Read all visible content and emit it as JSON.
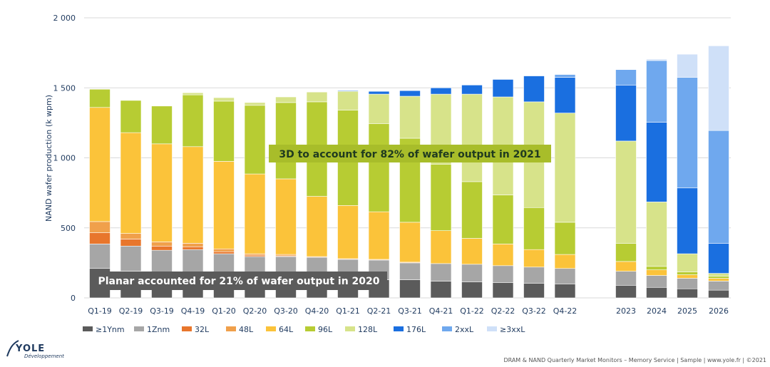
{
  "chart_data": {
    "type": "stacked-bar",
    "title": "",
    "ylabel": "NAND wafer production (k wpm)",
    "ylim": [
      0,
      2000
    ],
    "yticks": [
      0,
      500,
      1000,
      1500,
      2000
    ],
    "ytick_labels": [
      "0",
      "500",
      "1 000",
      "1 500",
      "2 000"
    ],
    "categories": [
      "Q1-19",
      "Q2-19",
      "Q3-19",
      "Q4-19",
      "Q1-20",
      "Q2-20",
      "Q3-20",
      "Q4-20",
      "Q1-21",
      "Q2-21",
      "Q3-21",
      "Q4-21",
      "Q1-22",
      "Q2-22",
      "Q3-22",
      "Q4-22",
      "2023",
      "2024",
      "2025",
      "2026"
    ],
    "series": [
      {
        "name": "≥1Ynm",
        "color": "#5b5b5b",
        "values": [
          210,
          190,
          170,
          165,
          155,
          145,
          140,
          140,
          135,
          130,
          130,
          120,
          115,
          110,
          105,
          100,
          90,
          75,
          65,
          55
        ]
      },
      {
        "name": "1Znm",
        "color": "#a6a6a6",
        "values": [
          175,
          180,
          170,
          180,
          160,
          150,
          155,
          150,
          140,
          140,
          120,
          125,
          125,
          120,
          115,
          110,
          100,
          85,
          75,
          65
        ]
      },
      {
        "name": "32L",
        "color": "#e8762c",
        "values": [
          80,
          50,
          30,
          20,
          15,
          10,
          5,
          0,
          0,
          0,
          0,
          0,
          0,
          0,
          0,
          0,
          0,
          0,
          0,
          0
        ]
      },
      {
        "name": "48L",
        "color": "#f0a04b",
        "values": [
          80,
          40,
          30,
          25,
          20,
          10,
          10,
          5,
          5,
          5,
          5,
          0,
          0,
          0,
          0,
          0,
          0,
          0,
          0,
          0
        ]
      },
      {
        "name": "64L",
        "color": "#fbc33a",
        "values": [
          815,
          720,
          700,
          690,
          625,
          570,
          540,
          430,
          380,
          340,
          285,
          235,
          185,
          155,
          125,
          100,
          70,
          40,
          25,
          20
        ]
      },
      {
        "name": "96L",
        "color": "#b7cc33",
        "values": [
          130,
          230,
          270,
          370,
          430,
          490,
          545,
          675,
          680,
          630,
          600,
          475,
          405,
          350,
          300,
          230,
          130,
          25,
          20,
          15
        ]
      },
      {
        "name": "128L",
        "color": "#d7e38a",
        "values": [
          0,
          0,
          0,
          15,
          25,
          20,
          40,
          70,
          135,
          210,
          300,
          500,
          625,
          700,
          755,
          780,
          730,
          460,
          130,
          20
        ]
      },
      {
        "name": "176L",
        "color": "#1a6fe0",
        "values": [
          0,
          0,
          0,
          0,
          0,
          0,
          0,
          0,
          5,
          20,
          40,
          45,
          65,
          125,
          185,
          255,
          400,
          570,
          470,
          215
        ]
      },
      {
        "name": "2xxL",
        "color": "#6fa8ee",
        "values": [
          0,
          0,
          0,
          0,
          0,
          0,
          0,
          0,
          0,
          0,
          0,
          0,
          0,
          0,
          0,
          20,
          110,
          440,
          790,
          805
        ]
      },
      {
        "name": "≥3xxL",
        "color": "#cfe0f8",
        "values": [
          0,
          0,
          0,
          0,
          0,
          0,
          0,
          0,
          0,
          0,
          0,
          0,
          0,
          0,
          0,
          0,
          0,
          10,
          165,
          605
        ]
      }
    ],
    "annotations": [
      {
        "text": "3D to account for 82% of wafer output in 2021",
        "bg": "#a8bd2a",
        "color": "#1f3a1f"
      },
      {
        "text": "Planar accounted for 21% of wafer output in 2020",
        "bg": "#5b5b5b",
        "color": "#ffffff"
      }
    ]
  },
  "footer": "DRAM & NAND Quarterly Market Monitors – Memory Service | Sample | www.yole.fr | ©2021",
  "logo": {
    "name": "YOLE",
    "sub": "Développement"
  }
}
